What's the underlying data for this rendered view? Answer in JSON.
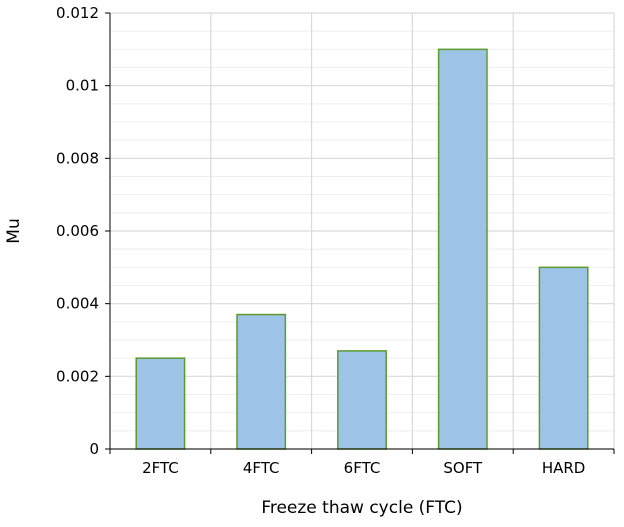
{
  "chart_data": {
    "type": "bar",
    "title": "",
    "xlabel": "Freeze thaw cycle (FTC)",
    "ylabel": "Mu",
    "categories": [
      "2FTC",
      "4FTC",
      "6FTC",
      "SOFT",
      "HARD"
    ],
    "series": [
      {
        "values": [
          0.0025,
          0.0037,
          0.0027,
          0.011,
          0.005
        ]
      }
    ],
    "ylim": [
      0,
      0.012
    ],
    "yticks": [
      0,
      0.002,
      0.004,
      0.006,
      0.008,
      0.01,
      0.012
    ],
    "ytick_labels": [
      "0",
      "0.002",
      "0.004",
      "0.006",
      "0.008",
      "0.01",
      "0.012"
    ],
    "grid": true,
    "legend": "none",
    "colors": {
      "bar_fill": "#9dc3e6",
      "bar_stroke": "#5b9b2e",
      "grid": "#d9d9d9",
      "axis": "#000000"
    }
  }
}
